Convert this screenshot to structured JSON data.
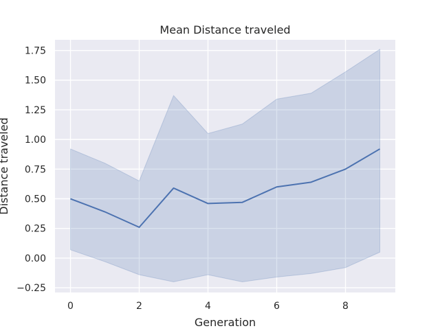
{
  "chart_data": {
    "type": "line",
    "title": "Mean Distance traveled",
    "xlabel": "Generation",
    "ylabel": "Distance traveled",
    "x": [
      0,
      1,
      2,
      3,
      4,
      5,
      6,
      7,
      8,
      9
    ],
    "series": [
      {
        "values": [
          0.5,
          0.39,
          0.26,
          0.59,
          0.46,
          0.47,
          0.6,
          0.64,
          0.75,
          0.92
        ],
        "band_upper": [
          0.92,
          0.8,
          0.65,
          1.37,
          1.05,
          1.13,
          1.34,
          1.39,
          1.57,
          1.76
        ],
        "band_lower": [
          0.07,
          -0.03,
          -0.14,
          -0.2,
          -0.14,
          -0.2,
          -0.16,
          -0.13,
          -0.08,
          0.05
        ]
      }
    ],
    "xlim": [
      -0.45,
      9.45
    ],
    "ylim": [
      -0.29,
      1.84
    ],
    "x_ticks": [
      0,
      2,
      4,
      6,
      8
    ],
    "x_tick_labels": [
      "0",
      "2",
      "4",
      "6",
      "8"
    ],
    "y_ticks": [
      -0.25,
      0,
      0.25,
      0.5,
      0.75,
      1.0,
      1.25,
      1.5,
      1.75
    ],
    "y_tick_labels": [
      "−0.25",
      "0.00",
      "0.25",
      "0.50",
      "0.75",
      "1.00",
      "1.25",
      "1.50",
      "1.75"
    ],
    "grid": true,
    "colors": {
      "background": "#eaeaf2",
      "grid": "#ffffff",
      "line": "#4c72b0",
      "band": "#4c72b0"
    }
  }
}
